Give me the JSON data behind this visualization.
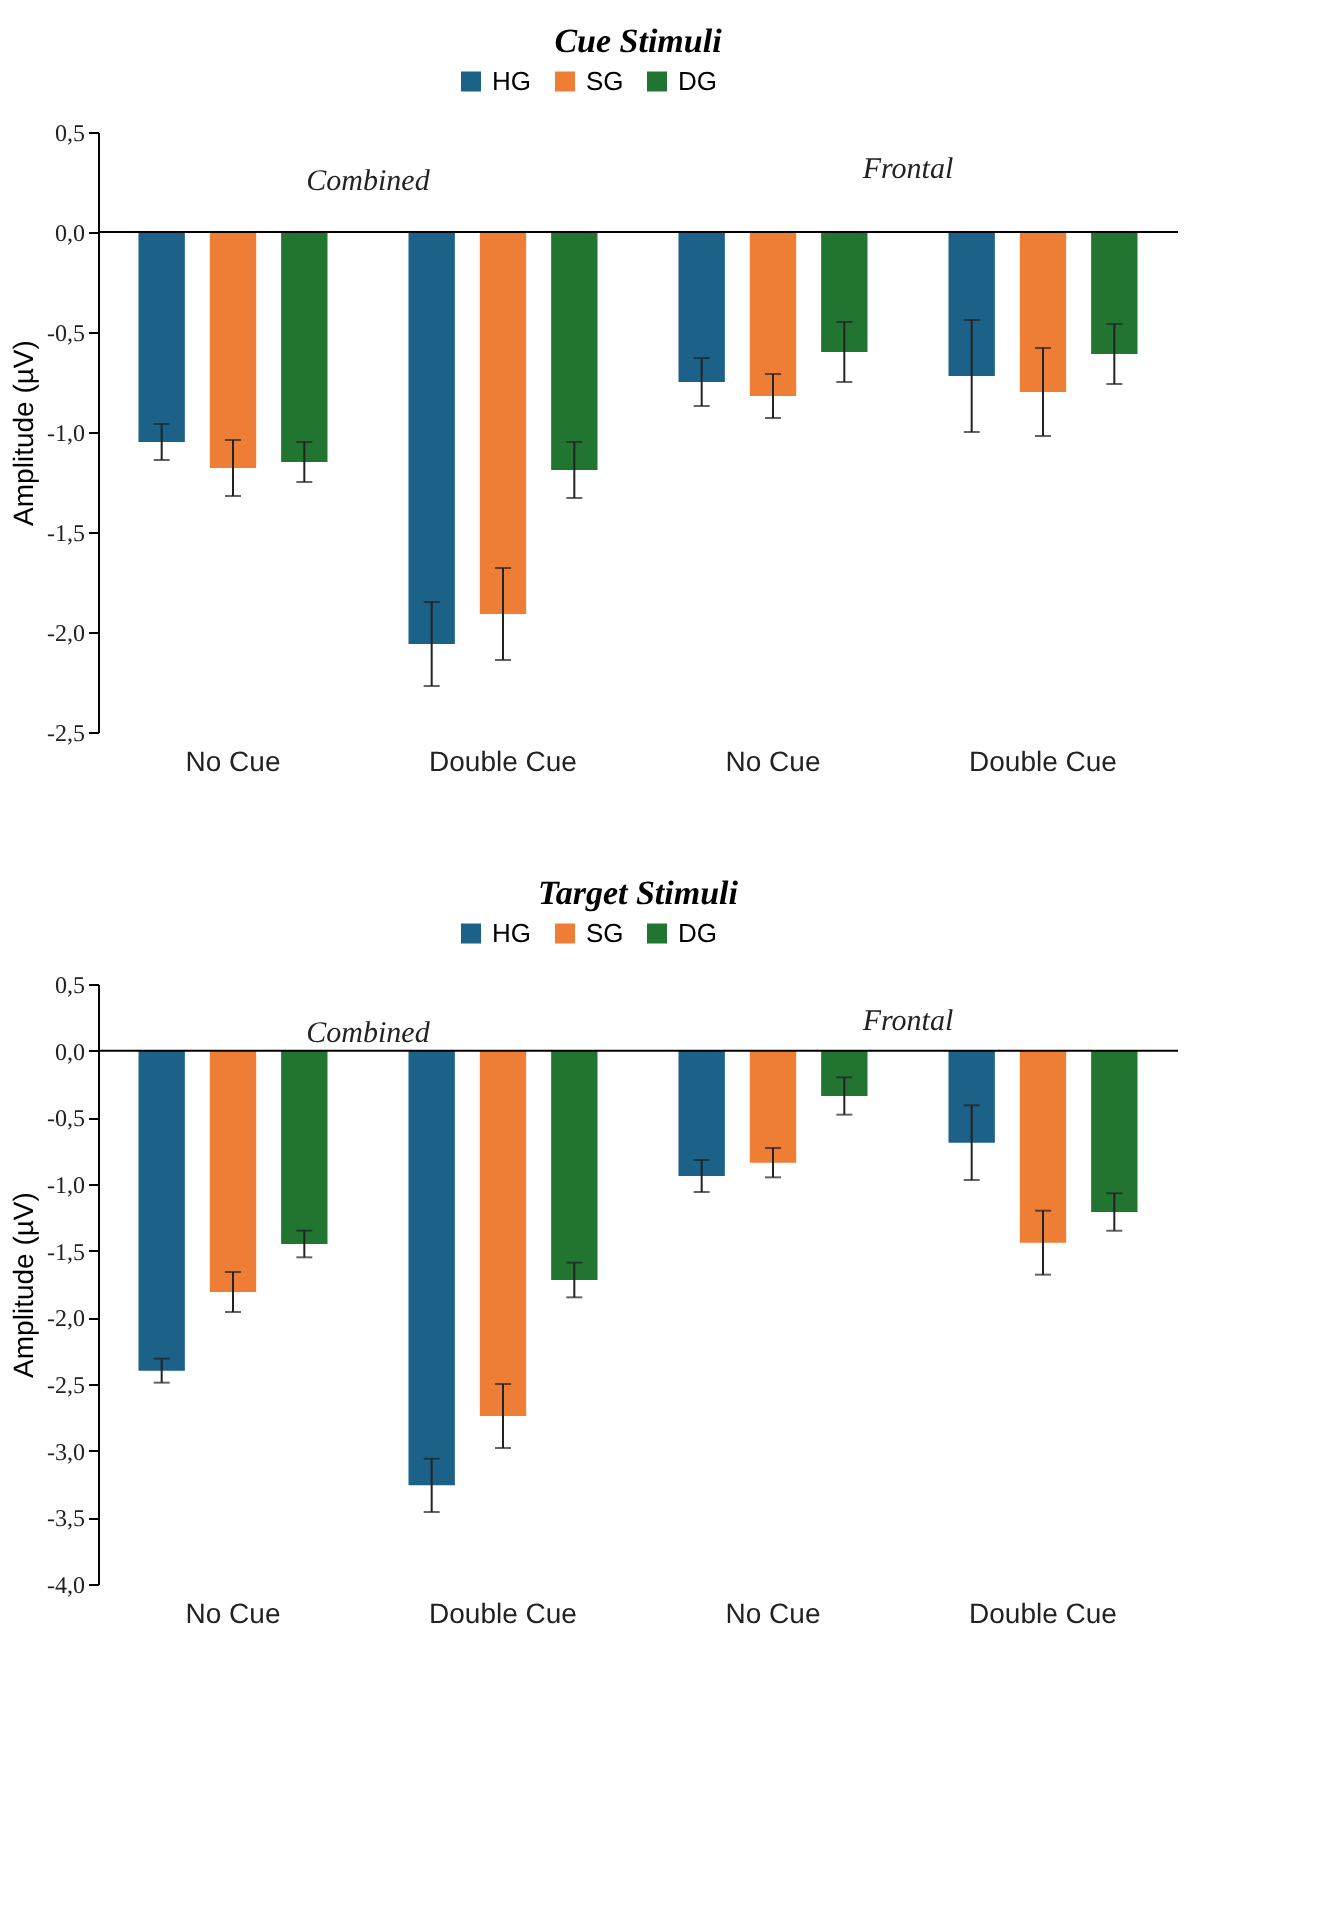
{
  "chart_data": [
    {
      "type": "bar",
      "title": "Cue Stimuli",
      "ylabel": "Amplitude (µV)",
      "categories": [
        "No Cue",
        "Double Cue",
        "No Cue",
        "Double Cue"
      ],
      "series": [
        {
          "name": "HG",
          "color": "#1c6188",
          "values": [
            -1.05,
            -2.06,
            -0.75,
            -0.72
          ],
          "errors": [
            0.09,
            0.21,
            0.12,
            0.28
          ]
        },
        {
          "name": "SG",
          "color": "#ee7d35",
          "values": [
            -1.18,
            -1.91,
            -0.82,
            -0.8
          ],
          "errors": [
            0.14,
            0.23,
            0.11,
            0.22
          ]
        },
        {
          "name": "DG",
          "color": "#217530",
          "values": [
            -1.15,
            -1.19,
            -0.6,
            -0.61
          ],
          "errors": [
            0.1,
            0.14,
            0.15,
            0.15
          ]
        }
      ],
      "ylim": [
        -2.5,
        0.5
      ],
      "yticks": [
        {
          "value": 0.5,
          "label": "0,5"
        },
        {
          "value": 0,
          "label": "0,0"
        },
        {
          "value": -0.5,
          "label": "-0,5"
        },
        {
          "value": -1,
          "label": "-1,0"
        },
        {
          "value": -1.5,
          "label": "-1,5"
        },
        {
          "value": -2,
          "label": "-2,0"
        },
        {
          "value": -2.5,
          "label": "-2,5"
        }
      ],
      "annotations": [
        "Combined",
        "Frontal"
      ],
      "legend": "top",
      "grid": false,
      "ref_lines": [
        {
          "axis": "y",
          "value": 0,
          "color": "#000000"
        }
      ]
    },
    {
      "type": "bar",
      "title": "Target Stimuli",
      "ylabel": "Amplitude (µV)",
      "categories": [
        "No Cue",
        "Double Cue",
        "No Cue",
        "Double Cue"
      ],
      "series": [
        {
          "name": "HG",
          "color": "#1c6188",
          "values": [
            -2.4,
            -3.26,
            -0.94,
            -0.69
          ],
          "errors": [
            0.09,
            0.2,
            0.12,
            0.28
          ]
        },
        {
          "name": "SG",
          "color": "#ee7d35",
          "values": [
            -1.81,
            -2.74,
            -0.84,
            -1.44
          ],
          "errors": [
            0.15,
            0.24,
            0.11,
            0.24
          ]
        },
        {
          "name": "DG",
          "color": "#217530",
          "values": [
            -1.45,
            -1.72,
            -0.34,
            -1.21
          ],
          "errors": [
            0.1,
            0.13,
            0.14,
            0.14
          ]
        }
      ],
      "ylim": [
        -4,
        0.5
      ],
      "yticks": [
        {
          "value": 0.5,
          "label": "0,5"
        },
        {
          "value": 0,
          "label": "0,0"
        },
        {
          "value": -0.5,
          "label": "-0,5"
        },
        {
          "value": -1,
          "label": "-1,0"
        },
        {
          "value": -1.5,
          "label": "-1,5"
        },
        {
          "value": -2,
          "label": "-2,0"
        },
        {
          "value": -2.5,
          "label": "-2,5"
        },
        {
          "value": -3,
          "label": "-3,0"
        },
        {
          "value": -3.5,
          "label": "-3,5"
        },
        {
          "value": -4,
          "label": "-4,0"
        }
      ],
      "annotations": [
        "Combined",
        "Frontal"
      ],
      "legend": "top",
      "grid": false,
      "ref_lines": [
        {
          "axis": "y",
          "value": 0,
          "color": "#000000"
        }
      ]
    }
  ]
}
